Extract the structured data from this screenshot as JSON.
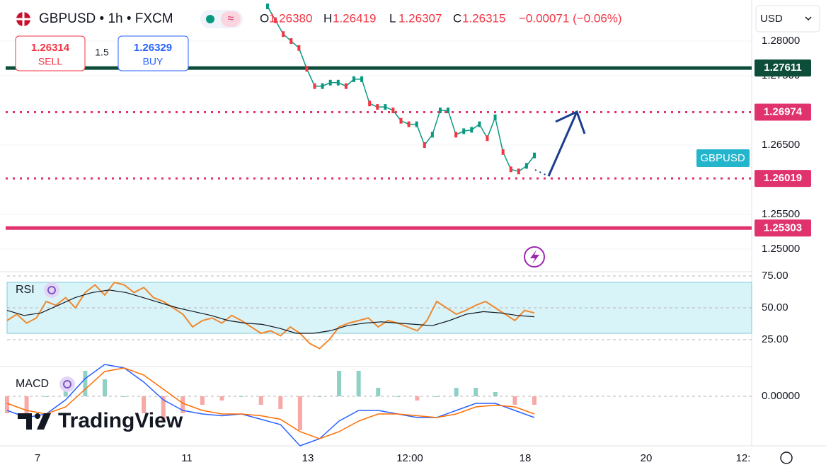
{
  "header": {
    "symbol": "GBPUSD • 1h • FXCM",
    "ohlc": [
      {
        "label": "O",
        "value": "1.26380"
      },
      {
        "label": "H",
        "value": "1.26419"
      },
      {
        "label": "L",
        "value": "1.26307"
      },
      {
        "label": "C",
        "value": "1.26315"
      }
    ],
    "change": "−0.00071 (−0.06%)"
  },
  "trade": {
    "sell_price": "1.26314",
    "sell_label": "SELL",
    "spread": "1.5",
    "buy_price": "1.26329",
    "buy_label": "BUY"
  },
  "currency": "USD",
  "price_scale": [
    {
      "value": 1.28,
      "label": "1.28000"
    },
    {
      "value": 1.275,
      "label": "1.27500"
    },
    {
      "value": 1.265,
      "label": "1.26500"
    },
    {
      "value": 1.255,
      "label": "1.25500"
    },
    {
      "value": 1.25,
      "label": "1.25000"
    }
  ],
  "levels": [
    {
      "value": 1.27611,
      "color": "#0d4d3a",
      "style": "solid"
    },
    {
      "value": 1.26974,
      "color": "#e0336e",
      "style": "dotted"
    },
    {
      "value": 1.26019,
      "color": "#e0336e",
      "style": "dotted"
    },
    {
      "value": 1.25303,
      "color": "#e0336e",
      "style": "solid"
    }
  ],
  "symbol_badge": "GBPUSD",
  "price_closes": [
    1.285,
    1.283,
    1.281,
    1.28,
    1.279,
    1.276,
    1.2735,
    1.2735,
    1.274,
    1.274,
    1.2735,
    1.2745,
    1.2745,
    1.271,
    1.2705,
    1.2705,
    1.27,
    1.2685,
    1.268,
    1.268,
    1.265,
    1.2665,
    1.27,
    1.27,
    1.2665,
    1.267,
    1.2672,
    1.268,
    1.266,
    1.269,
    1.264,
    1.2615,
    1.2612,
    1.262,
    1.2635
  ],
  "rsi": {
    "label": "RSI",
    "scale": [
      {
        "value": 75,
        "label": "75.00"
      },
      {
        "value": 50,
        "label": "50.00"
      },
      {
        "value": 25,
        "label": "25.00"
      }
    ],
    "values": [
      40,
      45,
      38,
      42,
      55,
      52,
      58,
      50,
      62,
      68,
      60,
      70,
      68,
      62,
      66,
      58,
      55,
      50,
      45,
      35,
      40,
      42,
      38,
      44,
      40,
      35,
      30,
      32,
      28,
      35,
      30,
      22,
      18,
      25,
      35,
      38,
      40,
      42,
      35,
      40,
      38,
      35,
      32,
      40,
      55,
      50,
      45,
      48,
      52,
      55,
      50,
      45,
      40,
      48,
      46
    ],
    "ma": [
      48,
      44,
      46,
      52,
      58,
      62,
      64,
      62,
      58,
      54,
      50,
      47,
      44,
      40,
      38,
      37,
      34,
      30,
      30,
      32,
      36,
      38,
      39,
      38,
      37,
      36,
      40,
      45,
      47,
      46,
      44,
      43
    ]
  },
  "macd": {
    "label": "MACD",
    "zero": {
      "value": 0,
      "label": "0.00000"
    },
    "macd": [
      -0.0008,
      -0.0012,
      -0.001,
      -0.0002,
      0.001,
      0.0018,
      0.0016,
      0.0008,
      -0.0002,
      -0.0008,
      -0.001,
      -0.0011,
      -0.001,
      -0.0013,
      -0.0016,
      -0.0028,
      -0.0024,
      -0.0014,
      -0.0008,
      -0.0008,
      -0.001,
      -0.0012,
      -0.0012,
      -0.0008,
      -0.0004,
      -0.0004,
      -0.0008,
      -0.0012
    ],
    "signal": [
      -0.0004,
      -0.0008,
      -0.001,
      -0.0006,
      0.0004,
      0.0014,
      0.0016,
      0.0012,
      0.0004,
      -0.0004,
      -0.0008,
      -0.001,
      -0.001,
      -0.0011,
      -0.0013,
      -0.002,
      -0.0024,
      -0.002,
      -0.0014,
      -0.001,
      -0.001,
      -0.0011,
      -0.0012,
      -0.001,
      -0.0006,
      -0.0005,
      -0.0006,
      -0.001
    ]
  },
  "logo": "TradingView",
  "time_axis": [
    "7",
    "11",
    "13",
    "12:00",
    "18",
    "20",
    "12:"
  ]
}
